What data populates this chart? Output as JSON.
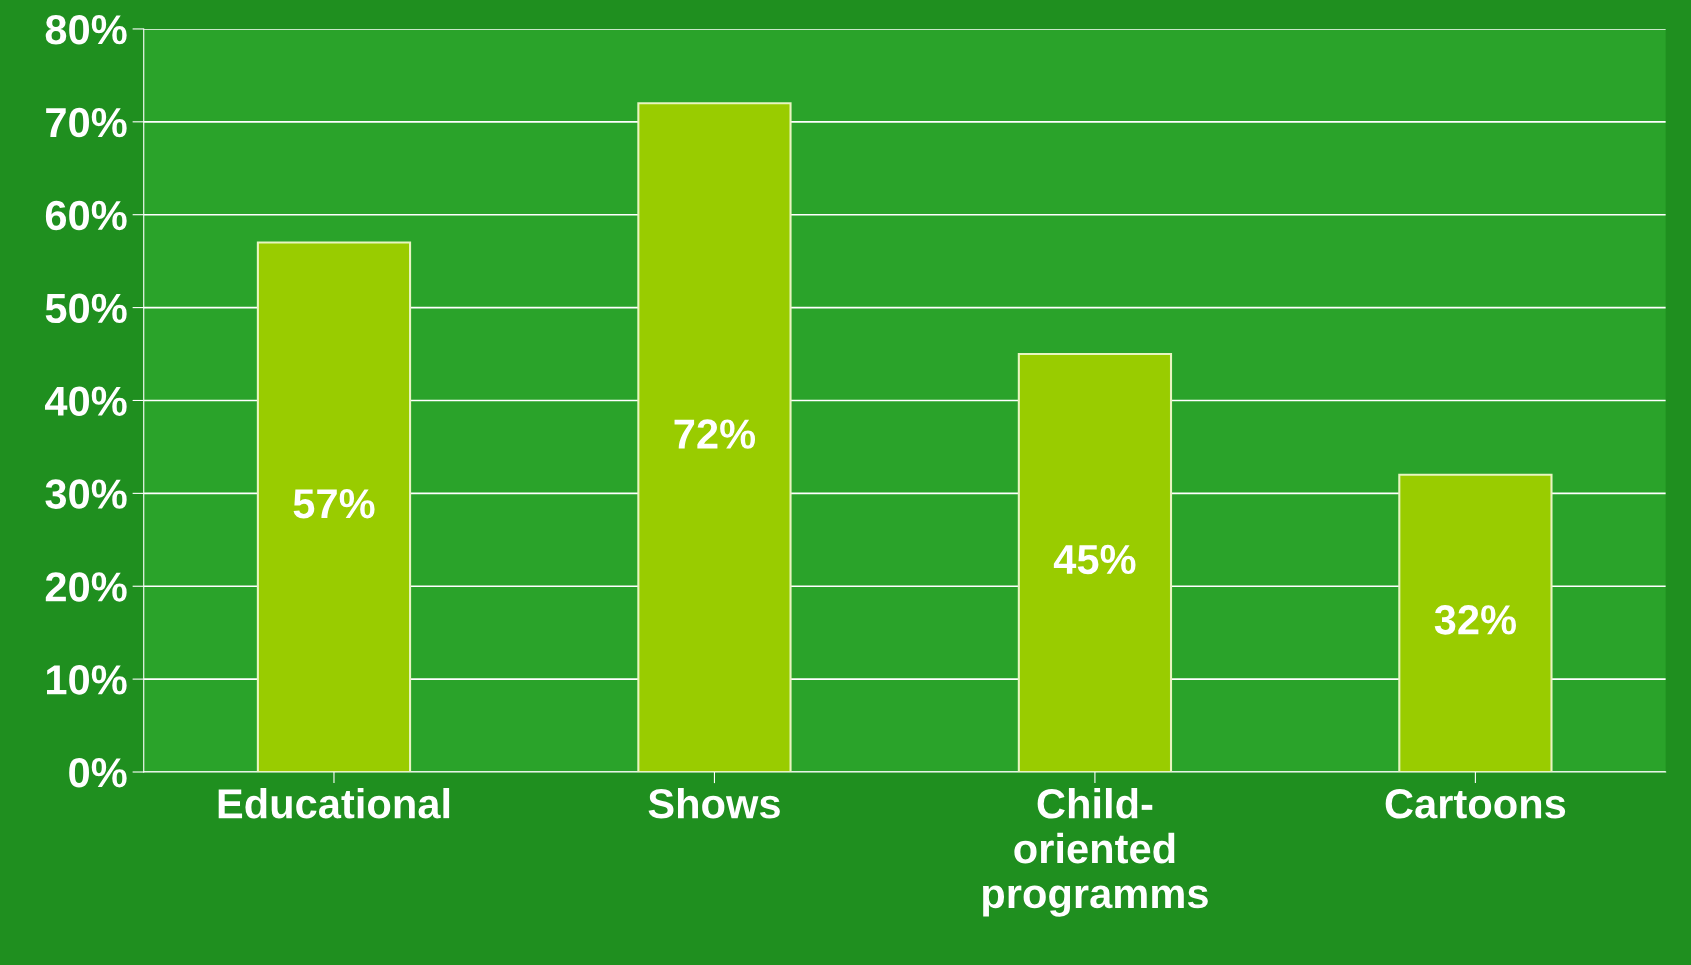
{
  "chart_data": {
    "type": "bar",
    "categories": [
      "Educational",
      "Shows",
      "Child-\noriented\nprogramms",
      "Cartoons"
    ],
    "values": [
      57,
      72,
      45,
      32
    ],
    "value_labels": [
      "57%",
      "72%",
      "45%",
      "32%"
    ],
    "color": "#99cc00",
    "ylim": [
      0,
      80
    ],
    "yticks": [
      {
        "value": 0,
        "label": "0%"
      },
      {
        "value": 10,
        "label": "10%"
      },
      {
        "value": 20,
        "label": "20%"
      },
      {
        "value": 30,
        "label": "30%"
      },
      {
        "value": 40,
        "label": "40%"
      },
      {
        "value": 50,
        "label": "50%"
      },
      {
        "value": 60,
        "label": "60%"
      },
      {
        "value": 70,
        "label": "70%"
      },
      {
        "value": 80,
        "label": "80%"
      }
    ],
    "grid": "y"
  }
}
